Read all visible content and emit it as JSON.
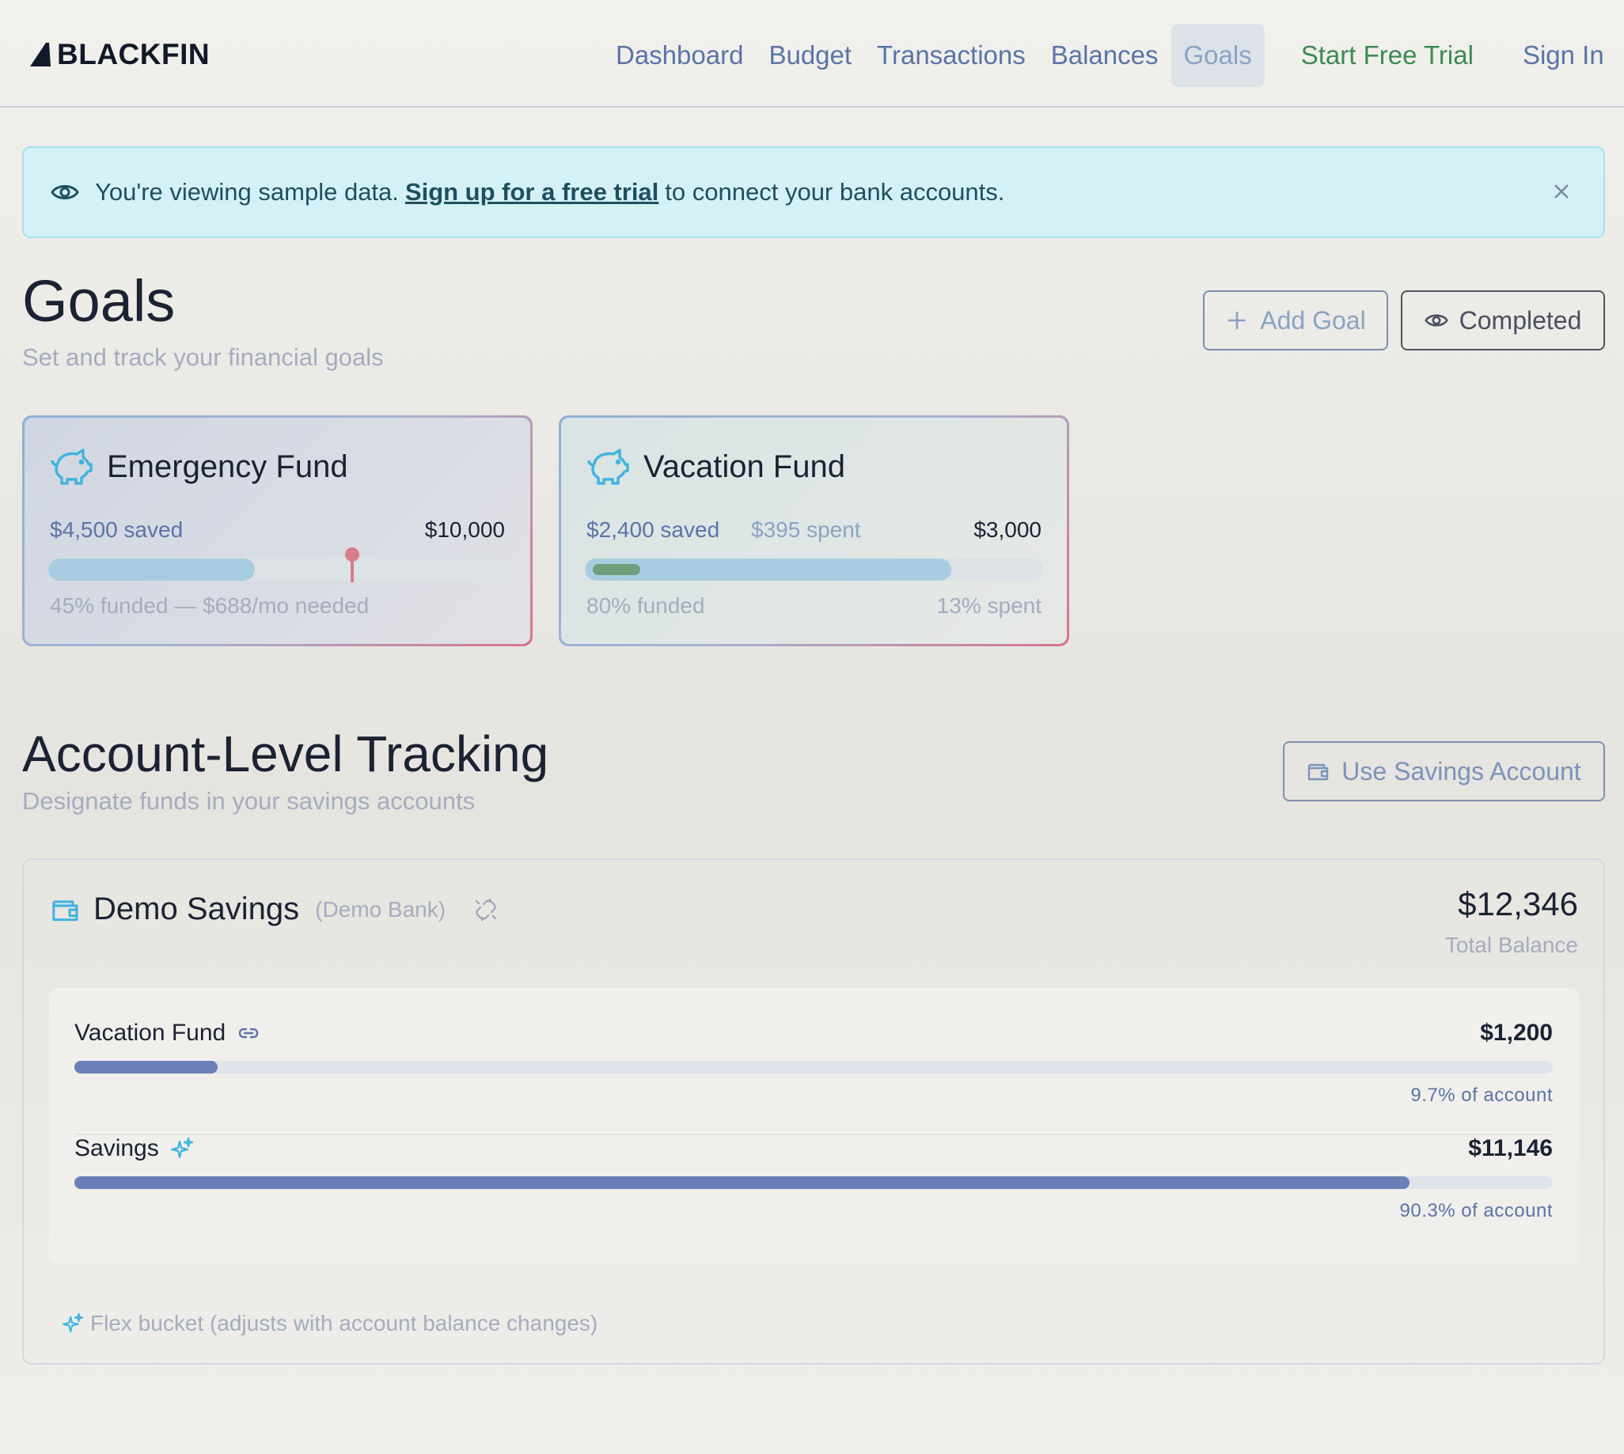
{
  "header": {
    "brand": "BLACKFIN",
    "nav": [
      {
        "label": "Dashboard"
      },
      {
        "label": "Budget"
      },
      {
        "label": "Transactions"
      },
      {
        "label": "Balances"
      },
      {
        "label": "Goals",
        "active": true
      }
    ],
    "trial_label": "Start Free Trial",
    "signin_label": "Sign In"
  },
  "banner": {
    "prefix": "You're viewing sample data.",
    "link": "Sign up for a free trial",
    "suffix": "to connect your bank accounts."
  },
  "goals_section": {
    "title": "Goals",
    "subtitle": "Set and track your financial goals",
    "add_label": "Add Goal",
    "completed_label": "Completed",
    "cards": [
      {
        "name": "Emergency Fund",
        "saved": "$4,500 saved",
        "target": "$10,000",
        "funded_fraction": 0.45,
        "marker_fraction": 0.66,
        "footer_left": "45% funded — $688/mo needed"
      },
      {
        "name": "Vacation Fund",
        "saved": "$2,400 saved",
        "spent": "$395 spent",
        "target": "$3,000",
        "funded_fraction": 0.8,
        "spent_fraction": 0.13,
        "footer_left": "80% funded",
        "footer_right": "13% spent"
      }
    ]
  },
  "account_section": {
    "title": "Account-Level Tracking",
    "subtitle": "Designate funds in your savings accounts",
    "use_savings_label": "Use Savings Account",
    "account": {
      "name": "Demo Savings",
      "bank": "(Demo Bank)",
      "balance": "$12,346",
      "balance_label": "Total Balance",
      "buckets": [
        {
          "name": "Vacation Fund",
          "icon": "link-icon",
          "amount": "$1,200",
          "fraction": 0.097,
          "pct_label": "9.7% of account"
        },
        {
          "name": "Savings",
          "icon": "sparkle-icon",
          "amount": "$11,146",
          "fraction": 0.903,
          "pct_label": "90.3% of account"
        }
      ],
      "flex_note": "Flex bucket (adjusts with account balance changes)"
    }
  },
  "colors": {
    "accent": "#5b73a8",
    "trial": "#3d8a55",
    "banner_bg": "#d4f1f8",
    "marker": "#d77e8b",
    "spent_fill": "#6f9f7c",
    "bucket_fill": "#6a7fb5"
  }
}
